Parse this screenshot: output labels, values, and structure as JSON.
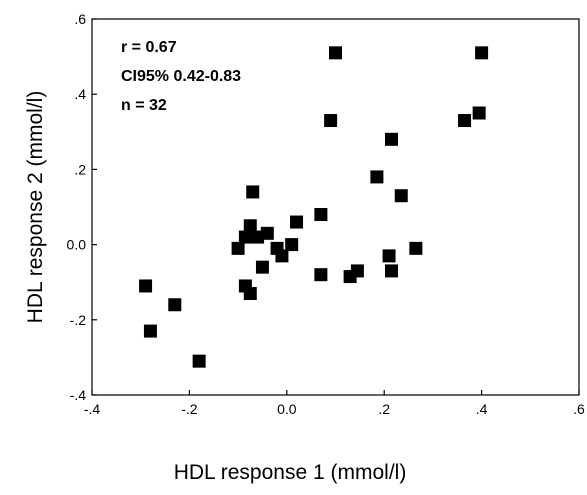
{
  "chart_data": {
    "type": "scatter",
    "xlabel": "HDL response 1 (mmol/l)",
    "ylabel": "HDL response 2 (mmol/l)",
    "xlim": [
      -0.4,
      0.6
    ],
    "ylim": [
      -0.4,
      0.6
    ],
    "x_ticks": [
      {
        "value": -0.4,
        "label": "-.4"
      },
      {
        "value": -0.2,
        "label": "-.2"
      },
      {
        "value": 0.0,
        "label": "0.0"
      },
      {
        "value": 0.2,
        "label": ".2"
      },
      {
        "value": 0.4,
        "label": ".4"
      },
      {
        "value": 0.6,
        "label": ".6"
      }
    ],
    "y_ticks": [
      {
        "value": -0.4,
        "label": "-.4"
      },
      {
        "value": -0.2,
        "label": "-.2"
      },
      {
        "value": 0.0,
        "label": "0.0"
      },
      {
        "value": 0.2,
        "label": ".2"
      },
      {
        "value": 0.4,
        "label": ".4"
      },
      {
        "value": 0.6,
        "label": ".6"
      }
    ],
    "grid": false,
    "marker": "square",
    "marker_color": "#000000",
    "annotation": [
      "r = 0.67",
      "CI95% 0.42-0.83",
      "n = 32"
    ],
    "points": [
      {
        "x": -0.29,
        "y": -0.11
      },
      {
        "x": -0.28,
        "y": -0.23
      },
      {
        "x": -0.23,
        "y": -0.16
      },
      {
        "x": -0.18,
        "y": -0.31
      },
      {
        "x": -0.1,
        "y": -0.01
      },
      {
        "x": -0.085,
        "y": 0.02
      },
      {
        "x": -0.085,
        "y": -0.11
      },
      {
        "x": -0.075,
        "y": -0.13
      },
      {
        "x": -0.075,
        "y": 0.05
      },
      {
        "x": -0.07,
        "y": 0.14
      },
      {
        "x": -0.06,
        "y": 0.02
      },
      {
        "x": -0.05,
        "y": -0.06
      },
      {
        "x": -0.04,
        "y": 0.03
      },
      {
        "x": -0.02,
        "y": -0.01
      },
      {
        "x": -0.01,
        "y": -0.03
      },
      {
        "x": 0.01,
        "y": 0.0
      },
      {
        "x": 0.02,
        "y": 0.06
      },
      {
        "x": 0.07,
        "y": 0.08
      },
      {
        "x": 0.07,
        "y": -0.08
      },
      {
        "x": 0.09,
        "y": 0.33
      },
      {
        "x": 0.1,
        "y": 0.51
      },
      {
        "x": 0.13,
        "y": -0.085
      },
      {
        "x": 0.145,
        "y": -0.07
      },
      {
        "x": 0.185,
        "y": 0.18
      },
      {
        "x": 0.21,
        "y": -0.03
      },
      {
        "x": 0.215,
        "y": -0.07
      },
      {
        "x": 0.215,
        "y": 0.28
      },
      {
        "x": 0.235,
        "y": 0.13
      },
      {
        "x": 0.265,
        "y": -0.01
      },
      {
        "x": 0.365,
        "y": 0.33
      },
      {
        "x": 0.395,
        "y": 0.35
      },
      {
        "x": 0.4,
        "y": 0.51
      }
    ]
  }
}
